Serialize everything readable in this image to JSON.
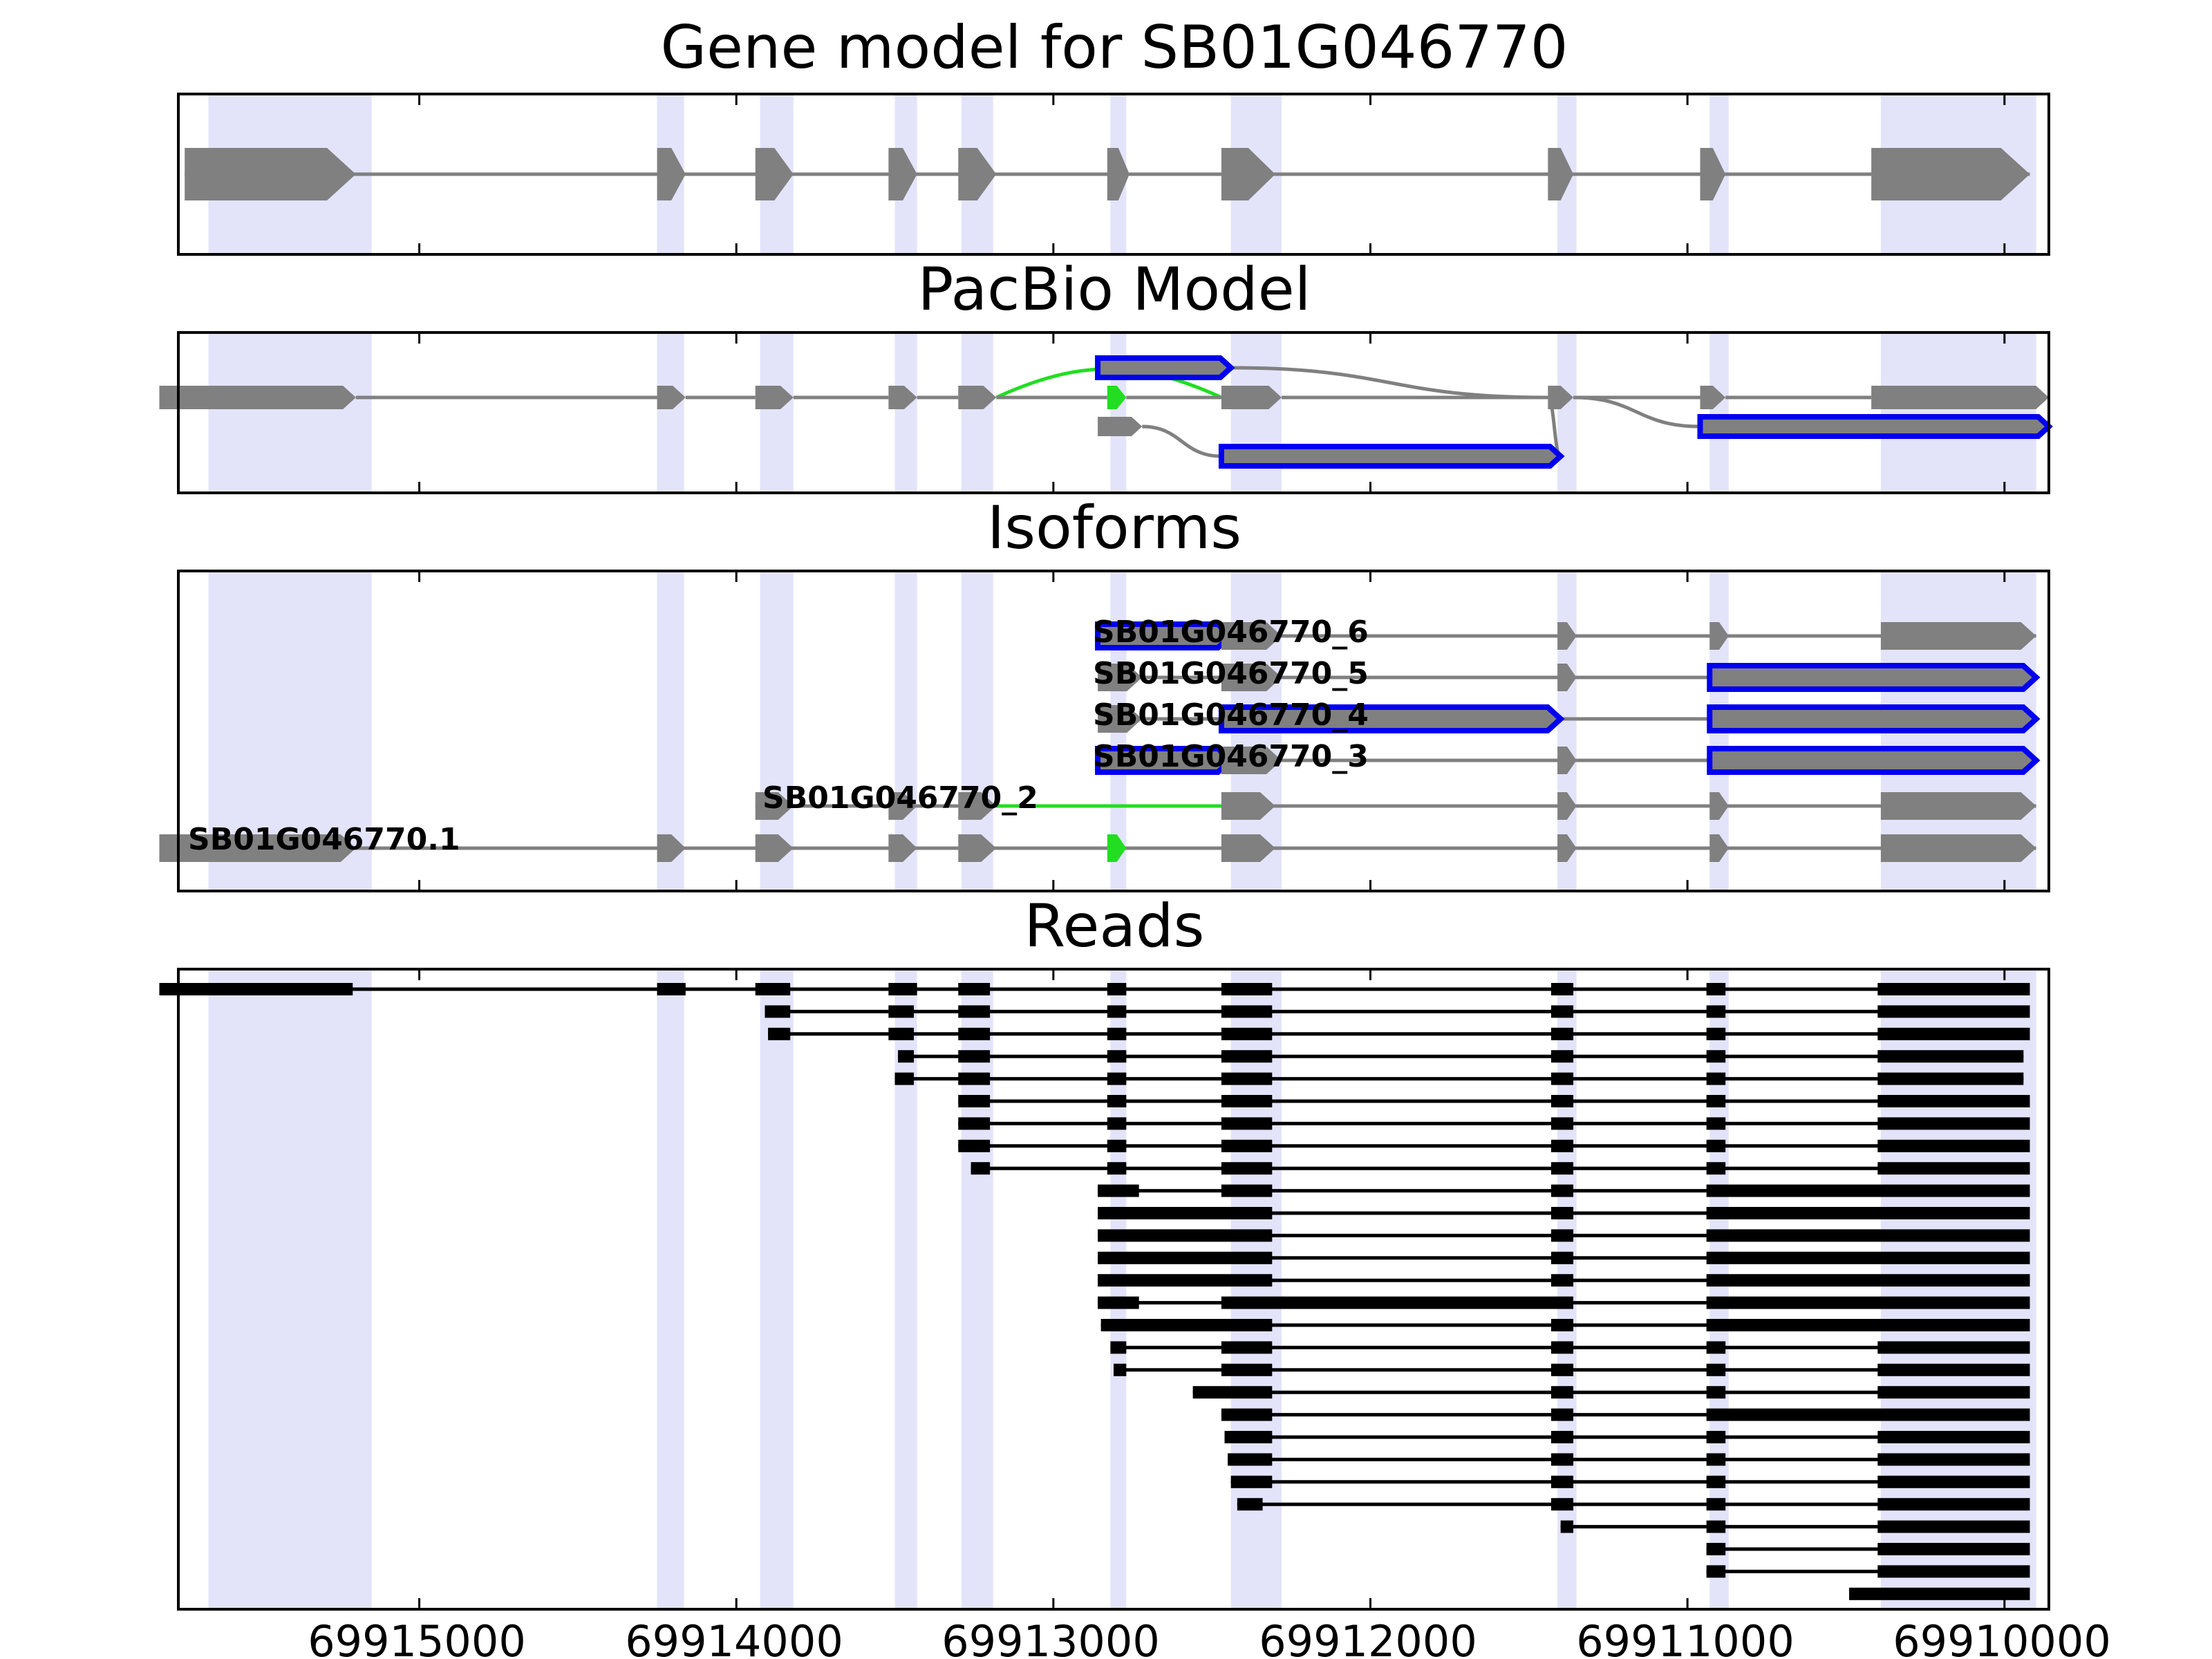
{
  "figure": {
    "panels": [
      {
        "id": "gene",
        "title": "Gene model for SB01G046770"
      },
      {
        "id": "pacbio",
        "title": "PacBio Model"
      },
      {
        "id": "isoforms",
        "title": "Isoforms"
      },
      {
        "id": "reads",
        "title": "Reads"
      }
    ],
    "x_axis": {
      "reversed": true,
      "range": [
        69915760,
        69909860
      ],
      "ticks": [
        69915000,
        69914000,
        69913000,
        69912000,
        69911000,
        69910000
      ],
      "tick_labels": [
        "69915000",
        "69914000",
        "69913000",
        "69912000",
        "69911000",
        "69910000"
      ]
    },
    "exon_regions": [
      [
        69915665,
        69915150
      ],
      [
        69914250,
        69914165
      ],
      [
        69913925,
        69913820
      ],
      [
        69913500,
        69913430
      ],
      [
        69913290,
        69913190
      ],
      [
        69912820,
        69912770
      ],
      [
        69912440,
        69912280
      ],
      [
        69911410,
        69911350
      ],
      [
        69910930,
        69910870
      ],
      [
        69910390,
        69909900
      ]
    ],
    "colors": {
      "highlight": "#e3e3fa",
      "gene": "#808080",
      "novel": "#0000ee",
      "green": "#22dd22",
      "read": "#000000"
    }
  },
  "chart_data": [
    {
      "type": "diagram",
      "title": "Gene model for SB01G046770",
      "exons": [
        [
          69915740,
          69915200
        ],
        [
          69914250,
          69914160
        ],
        [
          69913940,
          69913820
        ],
        [
          69913520,
          69913430
        ],
        [
          69913300,
          69913180
        ],
        [
          69912830,
          69912760
        ],
        [
          69912470,
          69912300
        ],
        [
          69911440,
          69911360
        ],
        [
          69910960,
          69910880
        ],
        [
          69910420,
          69909920
        ]
      ]
    },
    {
      "type": "diagram",
      "title": "PacBio Model",
      "rows": [
        0,
        1,
        2,
        3
      ],
      "nodes": [
        {
          "s": 69915820,
          "e": 69915200,
          "row": 1,
          "c": "gene"
        },
        {
          "s": 69914250,
          "e": 69914160,
          "row": 1,
          "c": "gene"
        },
        {
          "s": 69913940,
          "e": 69913820,
          "row": 1,
          "c": "gene"
        },
        {
          "s": 69913520,
          "e": 69913430,
          "row": 1,
          "c": "gene"
        },
        {
          "s": 69913300,
          "e": 69913180,
          "row": 1,
          "c": "gene"
        },
        {
          "s": 69912830,
          "e": 69912770,
          "row": 1,
          "c": "green"
        },
        {
          "s": 69912860,
          "e": 69912720,
          "row": 2,
          "c": "gene"
        },
        {
          "s": 69912860,
          "e": 69912440,
          "row": 0,
          "c": "novel"
        },
        {
          "s": 69912470,
          "e": 69912280,
          "row": 1,
          "c": "gene"
        },
        {
          "s": 69912470,
          "e": 69911400,
          "row": 3,
          "c": "novel"
        },
        {
          "s": 69911440,
          "e": 69911360,
          "row": 1,
          "c": "gene"
        },
        {
          "s": 69910960,
          "e": 69910880,
          "row": 1,
          "c": "gene"
        },
        {
          "s": 69910960,
          "e": 69909860,
          "row": 2,
          "c": "novel"
        },
        {
          "s": 69910420,
          "e": 69909860,
          "row": 1,
          "c": "gene"
        }
      ],
      "links": [
        {
          "a": 69915200,
          "ra": 1,
          "b": 69914250,
          "rb": 1,
          "c": "gene"
        },
        {
          "a": 69914160,
          "ra": 1,
          "b": 69913940,
          "rb": 1,
          "c": "gene"
        },
        {
          "a": 69913820,
          "ra": 1,
          "b": 69913520,
          "rb": 1,
          "c": "gene"
        },
        {
          "a": 69913430,
          "ra": 1,
          "b": 69913300,
          "rb": 1,
          "c": "gene"
        },
        {
          "a": 69913180,
          "ra": 1,
          "b": 69912470,
          "rb": 1,
          "c": "green"
        },
        {
          "a": 69912770,
          "ra": 1,
          "b": 69912470,
          "rb": 1,
          "c": "gene"
        },
        {
          "a": 69913180,
          "ra": 1,
          "b": 69912830,
          "rb": 1,
          "c": "gene"
        },
        {
          "a": 69912720,
          "ra": 2,
          "b": 69912470,
          "rb": 3,
          "c": "gene"
        },
        {
          "a": 69912440,
          "ra": 0,
          "b": 69911440,
          "rb": 1,
          "c": "gene"
        },
        {
          "a": 69912280,
          "ra": 1,
          "b": 69911440,
          "rb": 1,
          "c": "gene"
        },
        {
          "a": 69911400,
          "ra": 3,
          "b": 69911440,
          "rb": 1,
          "c": "gene"
        },
        {
          "a": 69911360,
          "ra": 1,
          "b": 69910960,
          "rb": 2,
          "c": "gene"
        },
        {
          "a": 69911360,
          "ra": 1,
          "b": 69910960,
          "rb": 1,
          "c": "gene"
        },
        {
          "a": 69910880,
          "ra": 1,
          "b": 69910420,
          "rb": 1,
          "c": "gene"
        }
      ]
    },
    {
      "type": "diagram",
      "title": "Isoforms",
      "isoforms": [
        {
          "label": "SB01G046770_6",
          "exons": [
            {
              "s": 69912860,
              "e": 69912440,
              "c": "novel"
            },
            {
              "s": 69912470,
              "e": 69912280,
              "c": "gene"
            },
            {
              "s": 69911410,
              "e": 69911350,
              "c": "gene"
            },
            {
              "s": 69910930,
              "e": 69910870,
              "c": "gene"
            },
            {
              "s": 69910390,
              "e": 69909900,
              "c": "gene"
            }
          ]
        },
        {
          "label": "SB01G046770_5",
          "exons": [
            {
              "s": 69912860,
              "e": 69912720,
              "c": "gene"
            },
            {
              "s": 69912470,
              "e": 69912280,
              "c": "gene"
            },
            {
              "s": 69911410,
              "e": 69911350,
              "c": "gene"
            },
            {
              "s": 69910930,
              "e": 69909900,
              "c": "novel"
            }
          ]
        },
        {
          "label": "SB01G046770_4",
          "exons": [
            {
              "s": 69912860,
              "e": 69912720,
              "c": "gene"
            },
            {
              "s": 69912470,
              "e": 69911400,
              "c": "novel"
            },
            {
              "s": 69910930,
              "e": 69909900,
              "c": "novel"
            }
          ]
        },
        {
          "label": "SB01G046770_3",
          "exons": [
            {
              "s": 69912860,
              "e": 69912440,
              "c": "novel"
            },
            {
              "s": 69912470,
              "e": 69912280,
              "c": "gene"
            },
            {
              "s": 69911410,
              "e": 69911350,
              "c": "gene"
            },
            {
              "s": 69910930,
              "e": 69909900,
              "c": "novel"
            }
          ]
        },
        {
          "label": "SB01G046770_2",
          "green_intron": [
            69913180,
            69912470
          ],
          "exons": [
            {
              "s": 69913940,
              "e": 69913820,
              "c": "gene"
            },
            {
              "s": 69913520,
              "e": 69913430,
              "c": "gene"
            },
            {
              "s": 69913300,
              "e": 69913180,
              "c": "gene"
            },
            {
              "s": 69912470,
              "e": 69912300,
              "c": "gene"
            },
            {
              "s": 69911410,
              "e": 69911350,
              "c": "gene"
            },
            {
              "s": 69910930,
              "e": 69910870,
              "c": "gene"
            },
            {
              "s": 69910390,
              "e": 69909900,
              "c": "gene"
            }
          ]
        },
        {
          "label": "SB01G046770.1",
          "exons": [
            {
              "s": 69915820,
              "e": 69915200,
              "c": "gene"
            },
            {
              "s": 69914250,
              "e": 69914160,
              "c": "gene"
            },
            {
              "s": 69913940,
              "e": 69913820,
              "c": "gene"
            },
            {
              "s": 69913520,
              "e": 69913430,
              "c": "gene"
            },
            {
              "s": 69913300,
              "e": 69913180,
              "c": "gene"
            },
            {
              "s": 69912830,
              "e": 69912770,
              "c": "green"
            },
            {
              "s": 69912470,
              "e": 69912300,
              "c": "gene"
            },
            {
              "s": 69911410,
              "e": 69911350,
              "c": "gene"
            },
            {
              "s": 69910930,
              "e": 69910870,
              "c": "gene"
            },
            {
              "s": 69910390,
              "e": 69909900,
              "c": "gene"
            }
          ]
        }
      ]
    },
    {
      "type": "diagram",
      "title": "Reads",
      "reads": [
        [
          [
            69915820,
            69915210
          ],
          [
            69914250,
            69914160
          ],
          [
            69913940,
            69913830
          ],
          [
            69913520,
            69913430
          ],
          [
            69913300,
            69913200
          ],
          [
            69912830,
            69912770
          ],
          [
            69912470,
            69912310
          ],
          [
            69911430,
            69911360
          ],
          [
            69910940,
            69910880
          ],
          [
            69910400,
            69909920
          ]
        ],
        [
          [
            69913910,
            69913830
          ],
          [
            69913520,
            69913440
          ],
          [
            69913300,
            69913200
          ],
          [
            69912830,
            69912770
          ],
          [
            69912470,
            69912310
          ],
          [
            69911430,
            69911360
          ],
          [
            69910940,
            69910880
          ],
          [
            69910400,
            69909920
          ]
        ],
        [
          [
            69913900,
            69913830
          ],
          [
            69913520,
            69913440
          ],
          [
            69913300,
            69913200
          ],
          [
            69912830,
            69912770
          ],
          [
            69912470,
            69912310
          ],
          [
            69911430,
            69911360
          ],
          [
            69910940,
            69910880
          ],
          [
            69910400,
            69909920
          ]
        ],
        [
          [
            69913490,
            69913440
          ],
          [
            69913300,
            69913200
          ],
          [
            69912830,
            69912770
          ],
          [
            69912470,
            69912310
          ],
          [
            69911430,
            69911360
          ],
          [
            69910940,
            69910880
          ],
          [
            69910400,
            69909940
          ]
        ],
        [
          [
            69913500,
            69913440
          ],
          [
            69913300,
            69913200
          ],
          [
            69912830,
            69912770
          ],
          [
            69912470,
            69912310
          ],
          [
            69911430,
            69911360
          ],
          [
            69910940,
            69910880
          ],
          [
            69910400,
            69909940
          ]
        ],
        [
          [
            69913300,
            69913200
          ],
          [
            69912830,
            69912770
          ],
          [
            69912470,
            69912310
          ],
          [
            69911430,
            69911360
          ],
          [
            69910940,
            69910880
          ],
          [
            69910400,
            69909920
          ]
        ],
        [
          [
            69913300,
            69913200
          ],
          [
            69912830,
            69912770
          ],
          [
            69912470,
            69912310
          ],
          [
            69911430,
            69911360
          ],
          [
            69910940,
            69910880
          ],
          [
            69910400,
            69909920
          ]
        ],
        [
          [
            69913300,
            69913200
          ],
          [
            69912830,
            69912770
          ],
          [
            69912470,
            69912310
          ],
          [
            69911430,
            69911360
          ],
          [
            69910940,
            69910880
          ],
          [
            69910400,
            69909920
          ]
        ],
        [
          [
            69913260,
            69913200
          ],
          [
            69912830,
            69912770
          ],
          [
            69912470,
            69912310
          ],
          [
            69911430,
            69911360
          ],
          [
            69910940,
            69910880
          ],
          [
            69910400,
            69909920
          ]
        ],
        [
          [
            69912860,
            69912730
          ],
          [
            69912470,
            69912310
          ],
          [
            69911430,
            69911360
          ],
          [
            69910940,
            69909920
          ]
        ],
        [
          [
            69912860,
            69912310
          ],
          [
            69911430,
            69911360
          ],
          [
            69910940,
            69909920
          ]
        ],
        [
          [
            69912860,
            69912310
          ],
          [
            69911430,
            69911360
          ],
          [
            69910940,
            69909920
          ]
        ],
        [
          [
            69912860,
            69912310
          ],
          [
            69911430,
            69911360
          ],
          [
            69910940,
            69909920
          ]
        ],
        [
          [
            69912860,
            69912310
          ],
          [
            69911430,
            69911360
          ],
          [
            69910940,
            69909920
          ]
        ],
        [
          [
            69912860,
            69912730
          ],
          [
            69912470,
            69911360
          ],
          [
            69910940,
            69909920
          ]
        ],
        [
          [
            69912850,
            69912310
          ],
          [
            69911430,
            69911360
          ],
          [
            69910940,
            69909920
          ]
        ],
        [
          [
            69912820,
            69912770
          ],
          [
            69912470,
            69912310
          ],
          [
            69911430,
            69911360
          ],
          [
            69910940,
            69910880
          ],
          [
            69910400,
            69909920
          ]
        ],
        [
          [
            69912810,
            69912770
          ],
          [
            69912470,
            69912310
          ],
          [
            69911430,
            69911360
          ],
          [
            69910940,
            69910880
          ],
          [
            69910400,
            69909920
          ]
        ],
        [
          [
            69912560,
            69912310
          ],
          [
            69911430,
            69911360
          ],
          [
            69910940,
            69910880
          ],
          [
            69910400,
            69909920
          ]
        ],
        [
          [
            69912470,
            69912310
          ],
          [
            69911430,
            69911360
          ],
          [
            69910940,
            69909920
          ]
        ],
        [
          [
            69912460,
            69912310
          ],
          [
            69911430,
            69911360
          ],
          [
            69910940,
            69910880
          ],
          [
            69910400,
            69909920
          ]
        ],
        [
          [
            69912450,
            69912310
          ],
          [
            69911430,
            69911360
          ],
          [
            69910940,
            69910880
          ],
          [
            69910400,
            69909920
          ]
        ],
        [
          [
            69912440,
            69912310
          ],
          [
            69911430,
            69911360
          ],
          [
            69910940,
            69910880
          ],
          [
            69910400,
            69909920
          ]
        ],
        [
          [
            69912420,
            69912340
          ],
          [
            69911430,
            69911360
          ],
          [
            69910940,
            69910880
          ],
          [
            69910400,
            69909920
          ]
        ],
        [
          [
            69911400,
            69911360
          ],
          [
            69910940,
            69910880
          ],
          [
            69910400,
            69909920
          ]
        ],
        [
          [
            69910940,
            69910880
          ],
          [
            69910400,
            69909920
          ]
        ],
        [
          [
            69910940,
            69910880
          ],
          [
            69910400,
            69909920
          ]
        ],
        [
          [
            69910490,
            69909920
          ]
        ]
      ]
    }
  ]
}
